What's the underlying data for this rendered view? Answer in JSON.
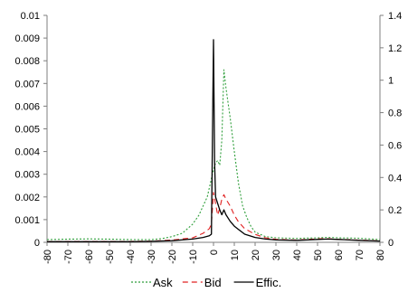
{
  "chart_data": {
    "type": "line",
    "title": "",
    "xlabel": "",
    "ylabel": "",
    "y2label": "",
    "x_ticks": [
      "-80",
      "-70",
      "-60",
      "-50",
      "-40",
      "-30",
      "-20",
      "-10",
      "0",
      "10",
      "20",
      "30",
      "40",
      "50",
      "60",
      "70",
      "80"
    ],
    "y_left_ticks": [
      "0",
      "0.001",
      "0.002",
      "0.003",
      "0.004",
      "0.005",
      "0.006",
      "0.007",
      "0.008",
      "0.009",
      "0.01"
    ],
    "y_right_ticks": [
      "0",
      "0.2",
      "0.4",
      "0.6",
      "0.8",
      "1",
      "1.2",
      "1.4"
    ],
    "xlim": [
      -80,
      80
    ],
    "ylim": [
      0,
      0.01
    ],
    "y2lim": [
      0,
      1.4
    ],
    "grid": false,
    "legend_position": "bottom",
    "series": [
      {
        "name": "Ask",
        "axis": "left",
        "color": "#2e9e3a",
        "dash": "dotted",
        "points": [
          [
            -80,
            0.00012
          ],
          [
            -70,
            0.00014
          ],
          [
            -60,
            0.00015
          ],
          [
            -50,
            0.00014
          ],
          [
            -40,
            0.00012
          ],
          [
            -30,
            0.00012
          ],
          [
            -25,
            0.00016
          ],
          [
            -20,
            0.00025
          ],
          [
            -15,
            0.0004
          ],
          [
            -10,
            0.0008
          ],
          [
            -7,
            0.0012
          ],
          [
            -5,
            0.0016
          ],
          [
            -3,
            0.002
          ],
          [
            -2,
            0.0024
          ],
          [
            -1,
            0.0028
          ],
          [
            0,
            0.0032
          ],
          [
            1,
            0.0035
          ],
          [
            2,
            0.0036
          ],
          [
            3,
            0.0034
          ],
          [
            4,
            0.0045
          ],
          [
            5,
            0.0076
          ],
          [
            6,
            0.0068
          ],
          [
            8,
            0.0055
          ],
          [
            10,
            0.004
          ],
          [
            12,
            0.0026
          ],
          [
            14,
            0.0016
          ],
          [
            16,
            0.0011
          ],
          [
            18,
            0.0007
          ],
          [
            20,
            0.00045
          ],
          [
            25,
            0.00025
          ],
          [
            30,
            0.0002
          ],
          [
            40,
            0.00017
          ],
          [
            50,
            0.0002
          ],
          [
            55,
            0.00022
          ],
          [
            60,
            0.0002
          ],
          [
            70,
            0.00018
          ],
          [
            80,
            0.00012
          ]
        ]
      },
      {
        "name": "Bid",
        "axis": "left",
        "color": "#e02020",
        "dash": "dashed",
        "points": [
          [
            -80,
            3e-05
          ],
          [
            -60,
            4e-05
          ],
          [
            -40,
            4e-05
          ],
          [
            -30,
            5e-05
          ],
          [
            -20,
            0.0001
          ],
          [
            -10,
            0.0002
          ],
          [
            -5,
            0.0004
          ],
          [
            -2,
            0.0006
          ],
          [
            -1,
            0.0008
          ],
          [
            0,
            0.0022
          ],
          [
            1,
            0.0017
          ],
          [
            2,
            0.0012
          ],
          [
            3,
            0.0015
          ],
          [
            4,
            0.0019
          ],
          [
            5,
            0.0021
          ],
          [
            6,
            0.0019
          ],
          [
            8,
            0.0016
          ],
          [
            10,
            0.0012
          ],
          [
            12,
            0.0009
          ],
          [
            15,
            0.0006
          ],
          [
            20,
            0.00035
          ],
          [
            25,
            0.0002
          ],
          [
            30,
            0.00013
          ],
          [
            40,
            0.0001
          ],
          [
            50,
            0.00015
          ],
          [
            55,
            0.00016
          ],
          [
            60,
            0.00013
          ],
          [
            70,
            0.0001
          ],
          [
            80,
            6e-05
          ]
        ]
      },
      {
        "name": "Effic.",
        "axis": "right",
        "color": "#000000",
        "dash": "solid",
        "points": [
          [
            -80,
            0.004
          ],
          [
            -60,
            0.004
          ],
          [
            -40,
            0.004
          ],
          [
            -30,
            0.006
          ],
          [
            -20,
            0.01
          ],
          [
            -10,
            0.02
          ],
          [
            -5,
            0.03
          ],
          [
            -2,
            0.04
          ],
          [
            -1,
            0.05
          ],
          [
            0,
            1.25
          ],
          [
            0.5,
            0.5
          ],
          [
            1,
            0.28
          ],
          [
            2,
            0.24
          ],
          [
            3,
            0.2
          ],
          [
            4,
            0.17
          ],
          [
            5,
            0.2
          ],
          [
            6,
            0.17
          ],
          [
            8,
            0.13
          ],
          [
            10,
            0.1
          ],
          [
            12,
            0.08
          ],
          [
            15,
            0.05
          ],
          [
            20,
            0.03
          ],
          [
            25,
            0.02
          ],
          [
            30,
            0.015
          ],
          [
            40,
            0.012
          ],
          [
            50,
            0.018
          ],
          [
            55,
            0.02
          ],
          [
            60,
            0.018
          ],
          [
            70,
            0.012
          ],
          [
            80,
            0.008
          ]
        ]
      }
    ]
  }
}
